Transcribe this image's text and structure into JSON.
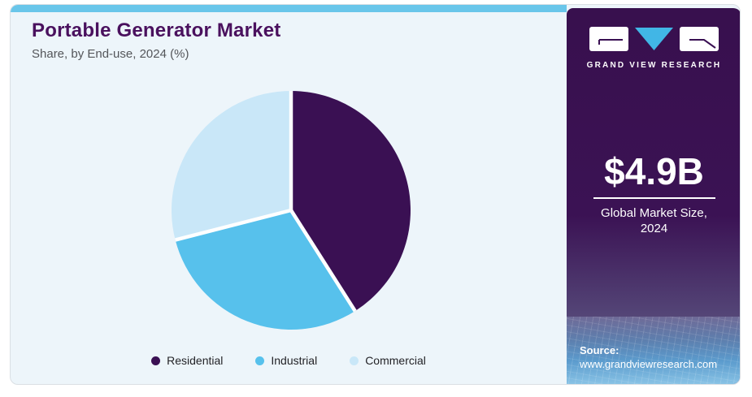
{
  "header": {
    "title": "Portable Generator Market",
    "subtitle": "Share, by End-use, 2024 (%)"
  },
  "panel": {
    "logo_text": "GRAND VIEW RESEARCH",
    "market_size_value": "$4.9B",
    "market_size_label_line1": "Global Market Size,",
    "market_size_label_line2": "2024",
    "source_label": "Source:",
    "source_url": "www.grandviewresearch.com"
  },
  "colors": {
    "accent_bar": "#69c6ea",
    "panel_purple": "#3a1053",
    "card_bg": "#edf5fa",
    "logo_triangle_blue": "#41b6e6",
    "slice_gap": "#ffffff"
  },
  "chart_data": {
    "type": "pie",
    "title": "Portable Generator Market",
    "subtitle": "Share, by End-use, 2024 (%)",
    "categories": [
      "Residential",
      "Industrial",
      "Commercial"
    ],
    "values": [
      41,
      30,
      29
    ],
    "unit": "%",
    "colors": [
      "#3a1053",
      "#57c1ec",
      "#c9e7f8"
    ],
    "start_angle_deg": 0,
    "direction": "clockwise",
    "legend_position": "bottom",
    "grid": false
  }
}
